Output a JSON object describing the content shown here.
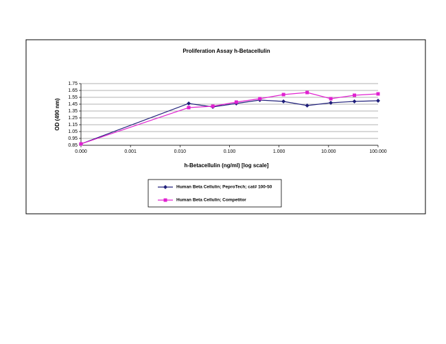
{
  "chart_data": {
    "type": "line",
    "title": "Proliferation Assay h-Betacellulin",
    "x_label": "h-Betacellulin (ng/ml) [log scale]",
    "y_label": "OD (490 nm)",
    "x_log": true,
    "x": [
      0.0001,
      0.015,
      0.046,
      0.137,
      0.41,
      1.23,
      3.7,
      11.1,
      33.3,
      100
    ],
    "series": [
      {
        "name": "Human Beta Cellulin; PeproTech; cat# 100-50",
        "color": "#1f1f7a",
        "marker": "diamond",
        "values": [
          0.87,
          1.46,
          1.41,
          1.46,
          1.51,
          1.49,
          1.43,
          1.47,
          1.49,
          1.5
        ]
      },
      {
        "name": "Human Beta Cellulin; Competitor",
        "color": "#e020d0",
        "marker": "square",
        "values": [
          0.87,
          1.4,
          1.42,
          1.48,
          1.53,
          1.59,
          1.62,
          1.53,
          1.58,
          1.6
        ]
      }
    ],
    "xlim": [
      0.0001,
      100
    ],
    "xticks": [
      {
        "value": 0.0001,
        "label": "0.000"
      },
      {
        "value": 0.001,
        "label": "0.001"
      },
      {
        "value": 0.01,
        "label": "0.010"
      },
      {
        "value": 0.1,
        "label": "0.100"
      },
      {
        "value": 1,
        "label": "1.000"
      },
      {
        "value": 10,
        "label": "10.000"
      },
      {
        "value": 100,
        "label": "100.000"
      }
    ],
    "ylim": [
      0.85,
      1.75
    ],
    "yticks": [
      0.85,
      0.95,
      1.05,
      1.15,
      1.25,
      1.35,
      1.45,
      1.55,
      1.65,
      1.75
    ],
    "grid": true
  }
}
